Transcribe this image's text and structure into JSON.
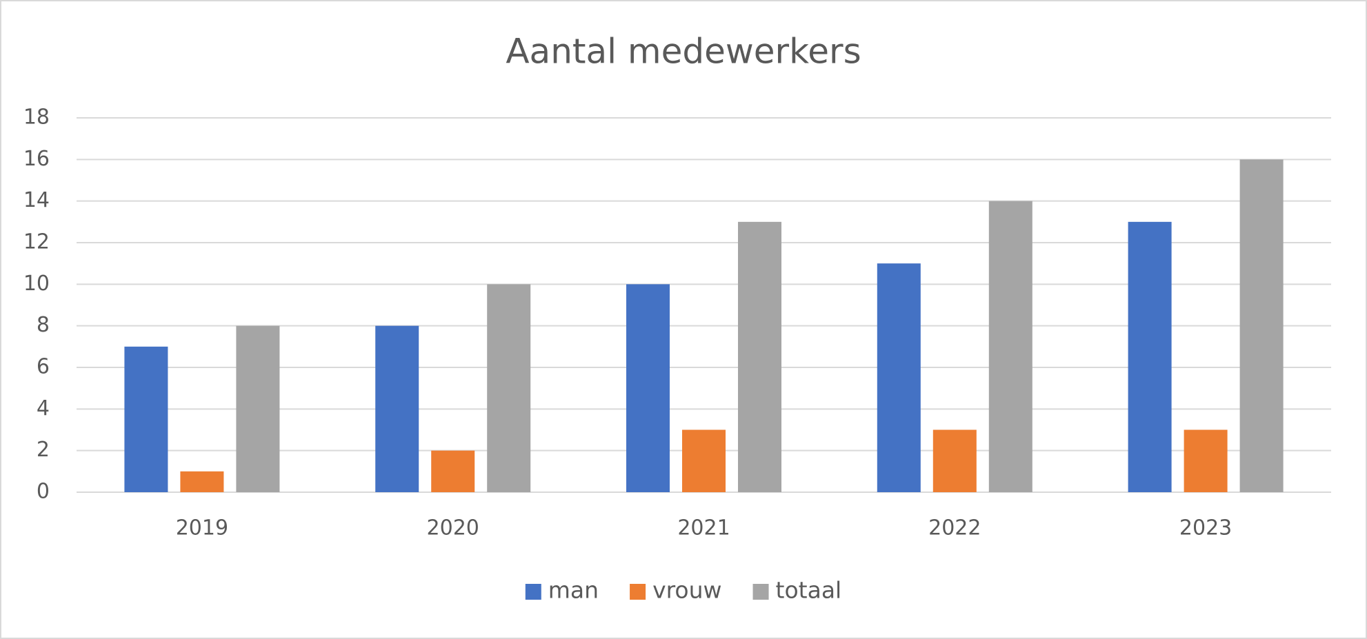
{
  "chart_data": {
    "type": "bar",
    "title": "Aantal medewerkers",
    "categories": [
      "2019",
      "2020",
      "2021",
      "2022",
      "2023"
    ],
    "series": [
      {
        "name": "man",
        "color": "#4472c4",
        "values": [
          7,
          8,
          10,
          11,
          13
        ]
      },
      {
        "name": "vrouw",
        "color": "#ed7d31",
        "values": [
          1,
          2,
          3,
          3,
          3
        ]
      },
      {
        "name": "totaal",
        "color": "#a5a5a5",
        "values": [
          8,
          10,
          13,
          14,
          16
        ]
      }
    ],
    "ylim": [
      0,
      18
    ],
    "yticks": [
      0,
      2,
      4,
      6,
      8,
      10,
      12,
      14,
      16,
      18
    ],
    "grid": true,
    "legend": "bottom"
  }
}
